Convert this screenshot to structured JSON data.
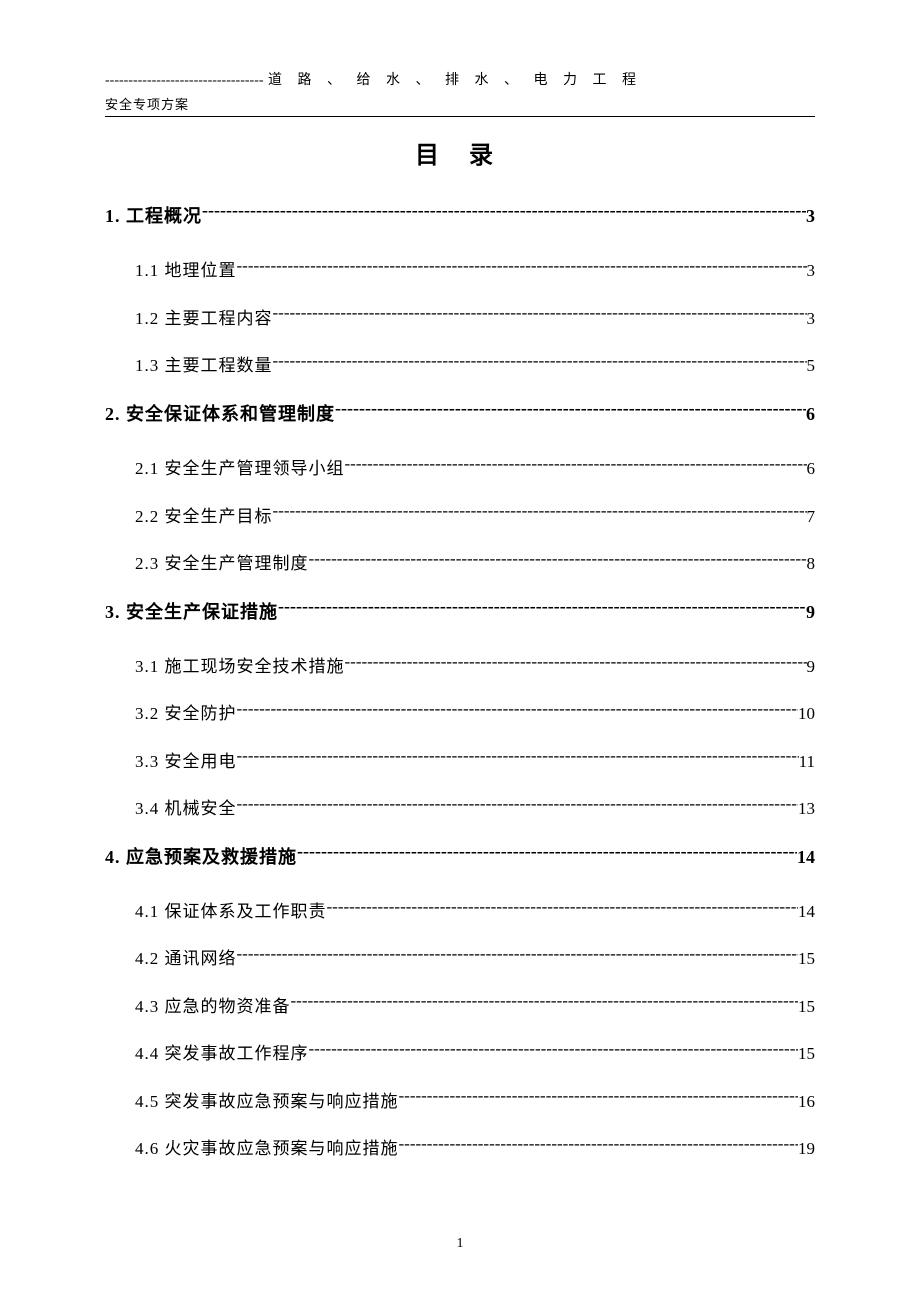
{
  "header": {
    "dash_prefix": "----------------------------------",
    "main_text": "道 路 、 给 水 、 排 水 、 电 力 工 程",
    "subtitle": "安全专项方案"
  },
  "title": "目  录",
  "toc": [
    {
      "level": 1,
      "label": "1. 工程概况",
      "page": "3"
    },
    {
      "level": 2,
      "label": "1.1 地理位置",
      "page": "3"
    },
    {
      "level": 2,
      "label": "1.2 主要工程内容",
      "page": "3"
    },
    {
      "level": 2,
      "label": "1.3 主要工程数量",
      "page": "5"
    },
    {
      "level": 1,
      "label": "2. 安全保证体系和管理制度",
      "page": "6"
    },
    {
      "level": 2,
      "label": "2.1 安全生产管理领导小组",
      "page": "6"
    },
    {
      "level": 2,
      "label": "2.2 安全生产目标",
      "page": "7"
    },
    {
      "level": 2,
      "label": "2.3 安全生产管理制度",
      "page": "8"
    },
    {
      "level": 1,
      "label": "3. 安全生产保证措施",
      "page": "9"
    },
    {
      "level": 2,
      "label": "3.1 施工现场安全技术措施",
      "page": "9"
    },
    {
      "level": 2,
      "label": "3.2 安全防护",
      "page": "10"
    },
    {
      "level": 2,
      "label": "3.3 安全用电",
      "page": "11"
    },
    {
      "level": 2,
      "label": "3.4 机械安全",
      "page": "13"
    },
    {
      "level": 1,
      "label": "4. 应急预案及救援措施",
      "page": "14"
    },
    {
      "level": 2,
      "label": "4.1 保证体系及工作职责",
      "page": "14"
    },
    {
      "level": 2,
      "label": "4.2 通讯网络",
      "page": "15"
    },
    {
      "level": 2,
      "label": "4.3 应急的物资准备",
      "page": "15"
    },
    {
      "level": 2,
      "label": "4.4 突发事故工作程序",
      "page": "15"
    },
    {
      "level": 2,
      "label": "4.5 突发事故应急预案与响应措施",
      "page": "16"
    },
    {
      "level": 2,
      "label": "4.6 火灾事故应急预案与响应措施",
      "page": "19"
    }
  ],
  "page_number": "1",
  "colors": {
    "text": "#000000",
    "background": "#ffffff"
  },
  "typography": {
    "body_font": "SimSun",
    "title_fontsize": 24,
    "level1_fontsize": 18,
    "level2_fontsize": 17,
    "header_fontsize": 14
  }
}
